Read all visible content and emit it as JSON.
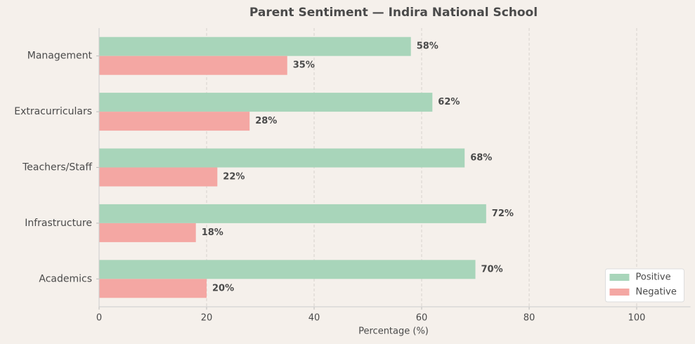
{
  "chart_data": {
    "type": "bar",
    "orientation": "horizontal",
    "title": "Parent Sentiment — Indira National School",
    "x_label": "Percentage (%)",
    "categories": [
      "Academics",
      "Infrastructure",
      "Teachers/Staff",
      "Extracurriculars",
      "Management"
    ],
    "series": [
      {
        "name": "Positive",
        "color": "#a8d5ba",
        "values": [
          70,
          72,
          68,
          62,
          58
        ],
        "value_labels": [
          "70%",
          "72%",
          "68%",
          "62%",
          "58%"
        ]
      },
      {
        "name": "Negative",
        "color": "#f4a7a3",
        "values": [
          20,
          18,
          22,
          28,
          35
        ],
        "value_labels": [
          "20%",
          "18%",
          "22%",
          "28%",
          "35%"
        ]
      }
    ],
    "xlim": [
      0,
      110
    ],
    "xticks": [
      0,
      20,
      40,
      60,
      80,
      100
    ],
    "grid": true,
    "legend": "lower right"
  }
}
